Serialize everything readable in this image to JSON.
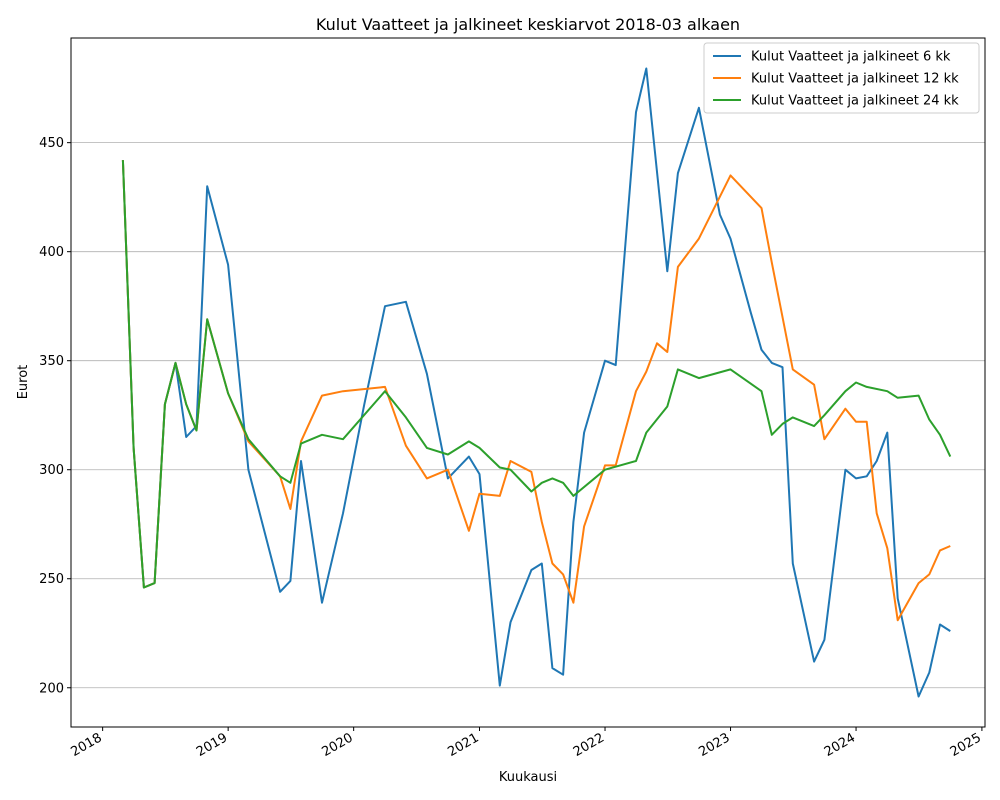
{
  "chart_data": {
    "type": "line",
    "title": "Kulut Vaatteet ja jalkineet keskiarvot 2018-03 alkaen",
    "xlabel": "Kuukausi",
    "ylabel": "Eurot",
    "xlim": [
      "2017-10-01",
      "2025-01-10"
    ],
    "ylim": [
      182,
      498
    ],
    "grid": "horizontal",
    "legend_position": "top-right",
    "x_ticks": [
      "2018",
      "2019",
      "2020",
      "2021",
      "2022",
      "2023",
      "2024",
      "2025"
    ],
    "y_ticks": [
      200,
      250,
      300,
      350,
      400,
      450
    ],
    "series": [
      {
        "name": "Kulut Vaatteet ja jalkineet 6 kk",
        "color": "#1f77b4",
        "points": [
          [
            "2018-03",
            442
          ],
          [
            "2018-04",
            310
          ],
          [
            "2018-05",
            246
          ],
          [
            "2018-06",
            248
          ],
          [
            "2018-07",
            330
          ],
          [
            "2018-08",
            349
          ],
          [
            "2018-09",
            315
          ],
          [
            "2018-10",
            320
          ],
          [
            "2018-11",
            430
          ],
          [
            "2019-01",
            394
          ],
          [
            "2019-03",
            300
          ],
          [
            "2019-06",
            244
          ],
          [
            "2019-07",
            249
          ],
          [
            "2019-08",
            304
          ],
          [
            "2019-10",
            239
          ],
          [
            "2019-12",
            280
          ],
          [
            "2020-02",
            330
          ],
          [
            "2020-04",
            375
          ],
          [
            "2020-06",
            377
          ],
          [
            "2020-08",
            344
          ],
          [
            "2020-10",
            296
          ],
          [
            "2020-12",
            306
          ],
          [
            "2021-01",
            298
          ],
          [
            "2021-03",
            201
          ],
          [
            "2021-04",
            230
          ],
          [
            "2021-06",
            254
          ],
          [
            "2021-07",
            257
          ],
          [
            "2021-08",
            209
          ],
          [
            "2021-09",
            206
          ],
          [
            "2021-10",
            276
          ],
          [
            "2021-11",
            317
          ],
          [
            "2022-01",
            350
          ],
          [
            "2022-02",
            348
          ],
          [
            "2022-04",
            464
          ],
          [
            "2022-05",
            484
          ],
          [
            "2022-07",
            391
          ],
          [
            "2022-08",
            436
          ],
          [
            "2022-10",
            466
          ],
          [
            "2022-12",
            417
          ],
          [
            "2023-01",
            406
          ],
          [
            "2023-03",
            372
          ],
          [
            "2023-04",
            355
          ],
          [
            "2023-05",
            349
          ],
          [
            "2023-06",
            347
          ],
          [
            "2023-07",
            257
          ],
          [
            "2023-09",
            212
          ],
          [
            "2023-10",
            222
          ],
          [
            "2023-12",
            300
          ],
          [
            "2024-01",
            296
          ],
          [
            "2024-02",
            297
          ],
          [
            "2024-03",
            304
          ],
          [
            "2024-04",
            317
          ],
          [
            "2024-05",
            241
          ],
          [
            "2024-07",
            196
          ],
          [
            "2024-08",
            207
          ],
          [
            "2024-09",
            229
          ],
          [
            "2024-10",
            226
          ]
        ]
      },
      {
        "name": "Kulut Vaatteet ja jalkineet 12 kk",
        "color": "#ff7f0e",
        "points": [
          [
            "2018-03",
            442
          ],
          [
            "2018-04",
            310
          ],
          [
            "2018-05",
            246
          ],
          [
            "2018-06",
            248
          ],
          [
            "2018-07",
            330
          ],
          [
            "2018-08",
            349
          ],
          [
            "2018-09",
            330
          ],
          [
            "2018-10",
            318
          ],
          [
            "2018-11",
            369
          ],
          [
            "2019-01",
            335
          ],
          [
            "2019-03",
            313
          ],
          [
            "2019-06",
            297
          ],
          [
            "2019-07",
            282
          ],
          [
            "2019-08",
            313
          ],
          [
            "2019-10",
            334
          ],
          [
            "2019-12",
            336
          ],
          [
            "2020-04",
            338
          ],
          [
            "2020-06",
            311
          ],
          [
            "2020-08",
            296
          ],
          [
            "2020-10",
            300
          ],
          [
            "2020-12",
            272
          ],
          [
            "2021-01",
            289
          ],
          [
            "2021-03",
            288
          ],
          [
            "2021-04",
            304
          ],
          [
            "2021-06",
            299
          ],
          [
            "2021-07",
            276
          ],
          [
            "2021-08",
            257
          ],
          [
            "2021-09",
            252
          ],
          [
            "2021-10",
            239
          ],
          [
            "2021-11",
            274
          ],
          [
            "2022-01",
            302
          ],
          [
            "2022-02",
            302
          ],
          [
            "2022-04",
            336
          ],
          [
            "2022-05",
            345
          ],
          [
            "2022-06",
            358
          ],
          [
            "2022-07",
            354
          ],
          [
            "2022-08",
            393
          ],
          [
            "2022-10",
            406
          ],
          [
            "2023-01",
            435
          ],
          [
            "2023-04",
            420
          ],
          [
            "2023-05",
            395
          ],
          [
            "2023-07",
            346
          ],
          [
            "2023-09",
            339
          ],
          [
            "2023-10",
            314
          ],
          [
            "2023-12",
            328
          ],
          [
            "2024-01",
            322
          ],
          [
            "2024-02",
            322
          ],
          [
            "2024-03",
            280
          ],
          [
            "2024-04",
            264
          ],
          [
            "2024-05",
            231
          ],
          [
            "2024-07",
            248
          ],
          [
            "2024-08",
            252
          ],
          [
            "2024-09",
            263
          ],
          [
            "2024-10",
            265
          ]
        ]
      },
      {
        "name": "Kulut Vaatteet ja jalkineet 24 kk",
        "color": "#2ca02c",
        "points": [
          [
            "2018-03",
            442
          ],
          [
            "2018-04",
            310
          ],
          [
            "2018-05",
            246
          ],
          [
            "2018-06",
            248
          ],
          [
            "2018-07",
            330
          ],
          [
            "2018-08",
            349
          ],
          [
            "2018-09",
            330
          ],
          [
            "2018-10",
            318
          ],
          [
            "2018-11",
            369
          ],
          [
            "2019-01",
            335
          ],
          [
            "2019-03",
            314
          ],
          [
            "2019-06",
            297
          ],
          [
            "2019-07",
            294
          ],
          [
            "2019-08",
            312
          ],
          [
            "2019-10",
            316
          ],
          [
            "2019-12",
            314
          ],
          [
            "2020-04",
            336
          ],
          [
            "2020-06",
            324
          ],
          [
            "2020-08",
            310
          ],
          [
            "2020-10",
            307
          ],
          [
            "2020-12",
            313
          ],
          [
            "2021-01",
            310
          ],
          [
            "2021-03",
            301
          ],
          [
            "2021-04",
            300
          ],
          [
            "2021-06",
            290
          ],
          [
            "2021-07",
            294
          ],
          [
            "2021-08",
            296
          ],
          [
            "2021-09",
            294
          ],
          [
            "2021-10",
            288
          ],
          [
            "2022-01",
            300
          ],
          [
            "2022-04",
            304
          ],
          [
            "2022-05",
            317
          ],
          [
            "2022-07",
            329
          ],
          [
            "2022-08",
            346
          ],
          [
            "2022-10",
            342
          ],
          [
            "2023-01",
            346
          ],
          [
            "2023-04",
            336
          ],
          [
            "2023-05",
            316
          ],
          [
            "2023-06",
            321
          ],
          [
            "2023-07",
            324
          ],
          [
            "2023-09",
            320
          ],
          [
            "2023-10",
            325
          ],
          [
            "2023-12",
            336
          ],
          [
            "2024-01",
            340
          ],
          [
            "2024-02",
            338
          ],
          [
            "2024-04",
            336
          ],
          [
            "2024-05",
            333
          ],
          [
            "2024-07",
            334
          ],
          [
            "2024-08",
            323
          ],
          [
            "2024-09",
            316
          ],
          [
            "2024-10",
            306
          ]
        ]
      }
    ]
  }
}
